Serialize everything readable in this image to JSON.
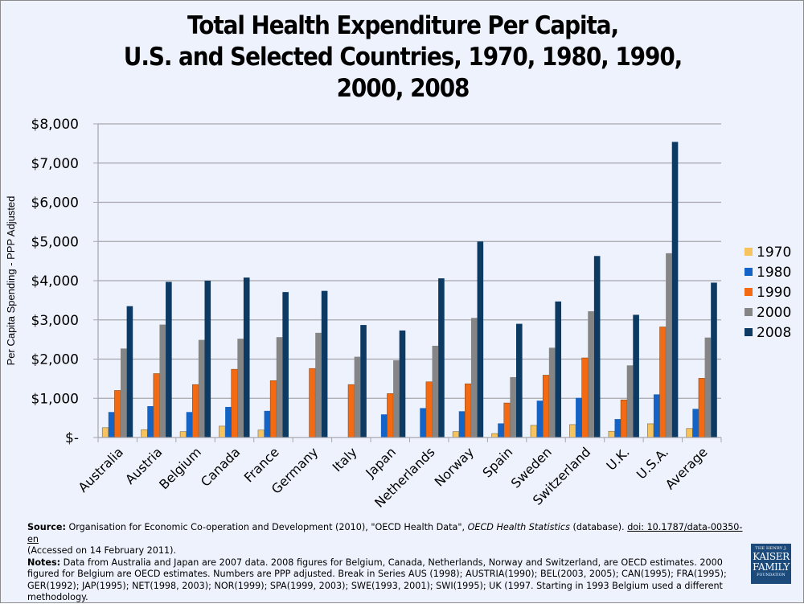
{
  "chart_data": {
    "type": "bar",
    "title_lines": [
      "Total Health Expenditure Per Capita,",
      "U.S. and Selected Countries, 1970, 1980, 1990,",
      "2000, 2008"
    ],
    "xlabel": "",
    "ylabel": "Per Capita Spending - PPP Adjusted",
    "ylim": [
      0,
      8000
    ],
    "yticks": [
      0,
      1000,
      2000,
      3000,
      4000,
      5000,
      6000,
      7000,
      8000
    ],
    "ytick_labels": [
      "$-",
      "$1,000",
      "$2,000",
      "$3,000",
      "$4,000",
      "$5,000",
      "$6,000",
      "$7,000",
      "$8,000"
    ],
    "grid": true,
    "legend_position": "right",
    "categories": [
      "Australia",
      "Austria",
      "Belgium",
      "Canada",
      "France",
      "Germany",
      "Italy",
      "Japan",
      "Netherlands",
      "Norway",
      "Spain",
      "Sweden",
      "Switzerland",
      "U.K.",
      "U.S.A.",
      "Average"
    ],
    "series": [
      {
        "name": "1970",
        "color": "#f7c35f",
        "values": [
          250,
          200,
          150,
          290,
          190,
          null,
          null,
          null,
          null,
          150,
          100,
          310,
          330,
          160,
          350,
          230
        ]
      },
      {
        "name": "1980",
        "color": "#1464c8",
        "values": [
          650,
          800,
          650,
          780,
          680,
          null,
          null,
          590,
          750,
          670,
          360,
          940,
          1010,
          470,
          1100,
          730
        ]
      },
      {
        "name": "1990",
        "color": "#f46a12",
        "values": [
          1200,
          1630,
          1350,
          1740,
          1450,
          1760,
          1350,
          1120,
          1420,
          1370,
          880,
          1590,
          2030,
          960,
          2820,
          1510
        ]
      },
      {
        "name": "2000",
        "color": "#858585",
        "values": [
          2270,
          2880,
          2490,
          2520,
          2560,
          2670,
          2060,
          1970,
          2340,
          3050,
          1540,
          2290,
          3220,
          1840,
          4700,
          2550
        ]
      },
      {
        "name": "2008",
        "color": "#0d3a63",
        "values": [
          3350,
          3970,
          4000,
          4080,
          3710,
          3740,
          2870,
          2730,
          4060,
          5000,
          2900,
          3470,
          4630,
          3130,
          7540,
          3950
        ]
      }
    ]
  },
  "footer": {
    "source_label": "Source:",
    "source_text": " Organisation for Economic Co-operation and Development (2010), \"OECD Health Data\", ",
    "source_italic": "OECD Health Statistics",
    "source_text2": " (database). ",
    "source_doi": "doi: 10.1787/data-00350-en",
    "source_accessed": "(Accessed on 14 February 2011).",
    "notes_label": "Notes:",
    "notes_text": " Data from Australia and Japan are 2007 data. 2008 figures for Belgium, Canada, Netherlands, Norway and Switzerland, are OECD estimates.  2000 figured for Belgium are OECD estimates.  Numbers are PPP adjusted. Break in Series AUS (1998);  AUSTRIA(1990); BEL(2003, 2005); CAN(1995); FRA(1995); GER(1992); JAP(1995); NET(1998, 2003); NOR(1999); SPA(1999, 2003); SWE(1993, 2001); SWI(1995); UK (1997.  Starting in 1993 Belgium used a different methodology."
  },
  "logo": {
    "line1": "THE HENRY J.",
    "line2": "KAISER",
    "line3": "FAMILY",
    "line4": "FOUNDATION"
  }
}
